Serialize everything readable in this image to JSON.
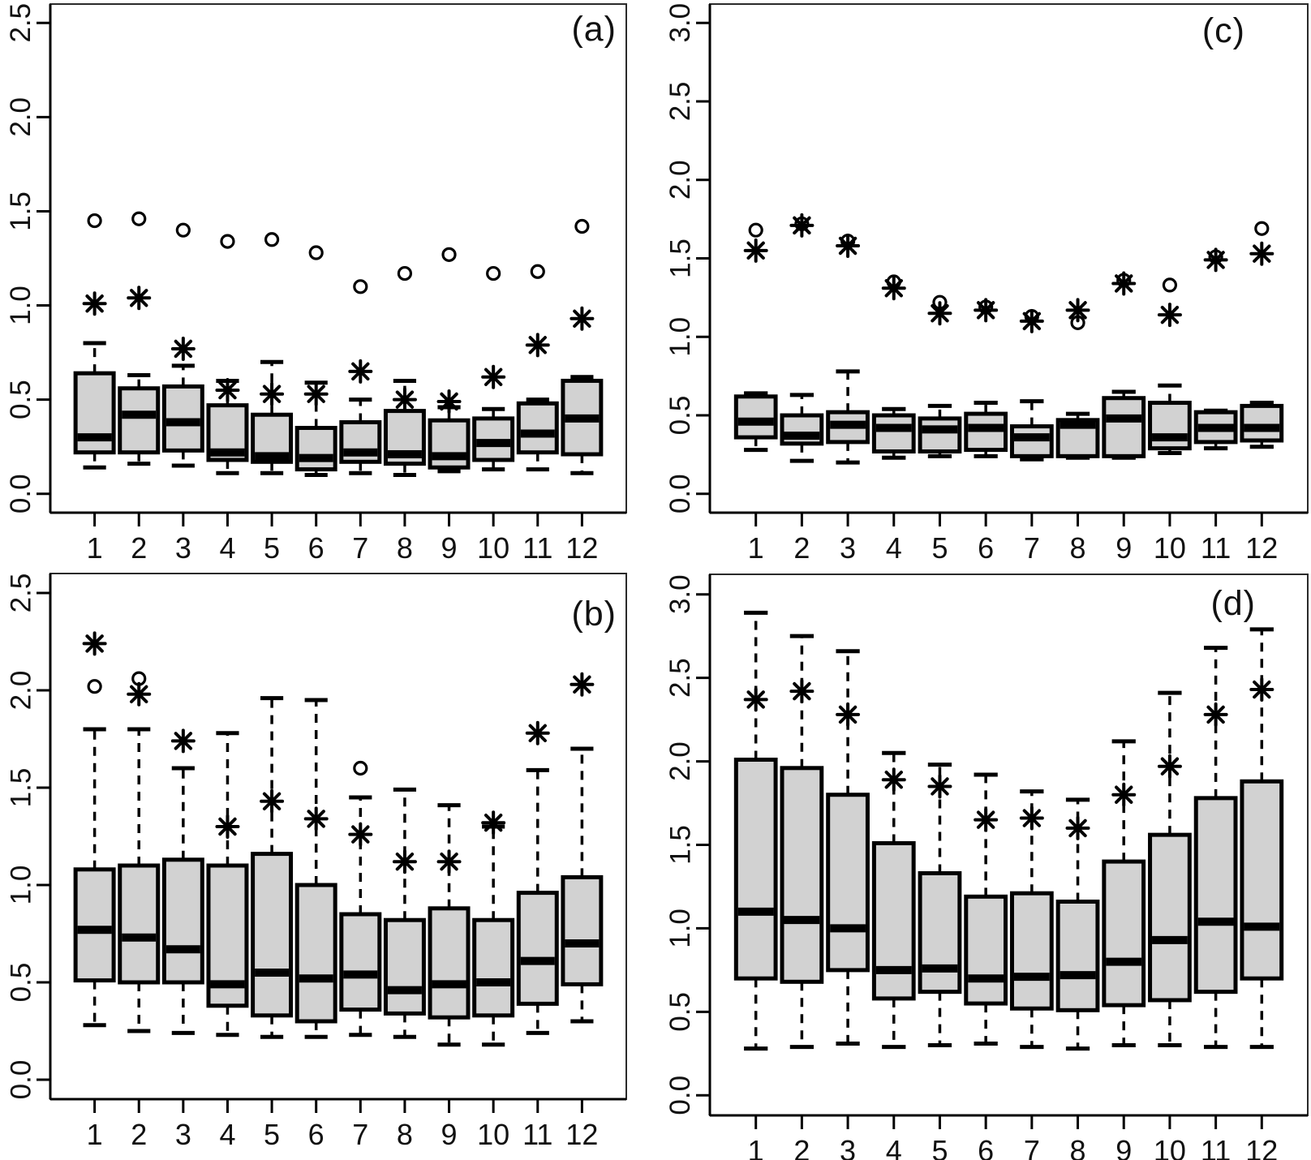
{
  "figure": {
    "background": "#ffffff",
    "description": "Four-panel monthly boxplot figure"
  },
  "x_categories": [
    "1",
    "2",
    "3",
    "4",
    "5",
    "6",
    "7",
    "8",
    "9",
    "10",
    "11",
    "12"
  ],
  "chart_data": {
    "type": "boxplot",
    "layout": "2x2-grid",
    "grid_on": false,
    "style": {
      "box_fill": "#d2d2d2",
      "line_color": "#000000",
      "border_color": "#2a2a2a",
      "background": "#ffffff",
      "whisker_style": "dashed",
      "near_outlier_symbol": "asterisk-8-spoke",
      "far_outlier_symbol": "open-circle"
    },
    "panels": [
      {
        "id": "a",
        "label": "(a)",
        "position": "top-left",
        "ylim": [
          0,
          2.5
        ],
        "ytick_labels": [
          "0.0",
          "0.5",
          "1.0",
          "1.5",
          "2.0",
          "2.5"
        ],
        "whisker_low": [
          0.14,
          0.16,
          0.15,
          0.11,
          0.11,
          0.1,
          0.11,
          0.1,
          0.12,
          0.13,
          0.13,
          0.11
        ],
        "q1": [
          0.22,
          0.22,
          0.23,
          0.18,
          0.17,
          0.13,
          0.17,
          0.16,
          0.14,
          0.18,
          0.22,
          0.21
        ],
        "median": [
          0.3,
          0.42,
          0.38,
          0.22,
          0.2,
          0.19,
          0.22,
          0.21,
          0.2,
          0.27,
          0.32,
          0.4
        ],
        "q3": [
          0.64,
          0.56,
          0.57,
          0.47,
          0.42,
          0.35,
          0.38,
          0.44,
          0.39,
          0.4,
          0.48,
          0.6
        ],
        "whisker_high": [
          0.8,
          0.63,
          0.68,
          0.6,
          0.7,
          0.59,
          0.5,
          0.6,
          0.46,
          0.45,
          0.5,
          0.62
        ],
        "asterisk_points": [
          1.01,
          1.04,
          0.77,
          0.55,
          0.53,
          0.53,
          0.65,
          0.5,
          0.49,
          0.62,
          0.79,
          0.93
        ],
        "circle_points": [
          1.45,
          1.46,
          1.4,
          1.34,
          1.35,
          1.28,
          1.1,
          1.17,
          1.27,
          1.17,
          1.18,
          1.42
        ]
      },
      {
        "id": "b",
        "label": "(b)",
        "position": "bottom-left",
        "ylim": [
          0,
          2.5
        ],
        "ytick_labels": [
          "0.0",
          "0.5",
          "1.0",
          "1.5",
          "2.0",
          "2.5"
        ],
        "whisker_low": [
          0.28,
          0.25,
          0.24,
          0.23,
          0.22,
          0.22,
          0.23,
          0.22,
          0.18,
          0.18,
          0.24,
          0.3
        ],
        "q1": [
          0.51,
          0.5,
          0.5,
          0.38,
          0.33,
          0.3,
          0.36,
          0.34,
          0.32,
          0.33,
          0.39,
          0.49
        ],
        "median": [
          0.77,
          0.73,
          0.67,
          0.49,
          0.55,
          0.52,
          0.54,
          0.46,
          0.49,
          0.5,
          0.61,
          0.7
        ],
        "q3": [
          1.08,
          1.1,
          1.13,
          1.1,
          1.16,
          1.0,
          0.85,
          0.82,
          0.88,
          0.82,
          0.96,
          1.04
        ],
        "whisker_high": [
          1.8,
          1.8,
          1.6,
          1.78,
          1.96,
          1.95,
          1.45,
          1.49,
          1.41,
          1.3,
          1.59,
          1.7
        ],
        "asterisk_points": [
          2.24,
          1.98,
          1.74,
          1.3,
          1.43,
          1.34,
          1.26,
          1.12,
          1.12,
          1.32,
          1.78,
          2.03
        ],
        "circle_points": [
          2.02,
          2.06,
          null,
          null,
          null,
          null,
          1.6,
          null,
          null,
          null,
          null,
          null
        ]
      },
      {
        "id": "c",
        "label": "(c)",
        "position": "top-right",
        "ylim": [
          0,
          3.0
        ],
        "ytick_labels": [
          "0.0",
          "0.5",
          "1.0",
          "1.5",
          "2.0",
          "2.5",
          "3.0"
        ],
        "whisker_low": [
          0.28,
          0.21,
          0.2,
          0.23,
          0.24,
          0.24,
          0.22,
          0.23,
          0.23,
          0.26,
          0.29,
          0.3
        ],
        "q1": [
          0.36,
          0.32,
          0.33,
          0.27,
          0.27,
          0.28,
          0.24,
          0.24,
          0.24,
          0.29,
          0.33,
          0.34
        ],
        "median": [
          0.46,
          0.37,
          0.44,
          0.42,
          0.41,
          0.42,
          0.36,
          0.44,
          0.48,
          0.36,
          0.42,
          0.42
        ],
        "q3": [
          0.62,
          0.5,
          0.52,
          0.5,
          0.48,
          0.51,
          0.43,
          0.47,
          0.61,
          0.58,
          0.52,
          0.56
        ],
        "whisker_high": [
          0.64,
          0.63,
          0.78,
          0.54,
          0.56,
          0.58,
          0.59,
          0.51,
          0.65,
          0.69,
          0.53,
          0.58
        ],
        "asterisk_points": [
          1.55,
          1.71,
          1.58,
          1.31,
          1.15,
          1.17,
          1.1,
          1.17,
          1.34,
          1.14,
          1.49,
          1.53
        ],
        "circle_points": [
          1.68,
          1.72,
          1.61,
          1.35,
          1.22,
          1.19,
          1.13,
          1.09,
          1.36,
          1.33,
          1.51,
          1.69
        ]
      },
      {
        "id": "d",
        "label": "(d)",
        "position": "bottom-right",
        "ylim": [
          0,
          3.0
        ],
        "ytick_labels": [
          "0.0",
          "0.5",
          "1.0",
          "1.5",
          "2.0",
          "2.5",
          "3.0"
        ],
        "whisker_low": [
          0.28,
          0.29,
          0.31,
          0.29,
          0.3,
          0.31,
          0.29,
          0.28,
          0.3,
          0.3,
          0.29,
          0.29
        ],
        "q1": [
          0.7,
          0.68,
          0.75,
          0.58,
          0.62,
          0.55,
          0.52,
          0.51,
          0.54,
          0.57,
          0.62,
          0.7
        ],
        "median": [
          1.1,
          1.05,
          1.0,
          0.75,
          0.76,
          0.7,
          0.71,
          0.72,
          0.8,
          0.93,
          1.04,
          1.01
        ],
        "q3": [
          2.01,
          1.96,
          1.8,
          1.51,
          1.33,
          1.19,
          1.21,
          1.16,
          1.4,
          1.56,
          1.78,
          1.88
        ],
        "whisker_high": [
          2.89,
          2.75,
          2.66,
          2.05,
          1.98,
          1.92,
          1.82,
          1.77,
          2.12,
          2.41,
          2.68,
          2.79
        ],
        "asterisk_points": [
          2.37,
          2.42,
          2.28,
          1.89,
          1.85,
          1.65,
          1.66,
          1.6,
          1.8,
          1.97,
          2.28,
          2.43
        ],
        "circle_points": [
          null,
          null,
          null,
          null,
          null,
          null,
          null,
          null,
          null,
          null,
          null,
          null
        ]
      }
    ]
  }
}
